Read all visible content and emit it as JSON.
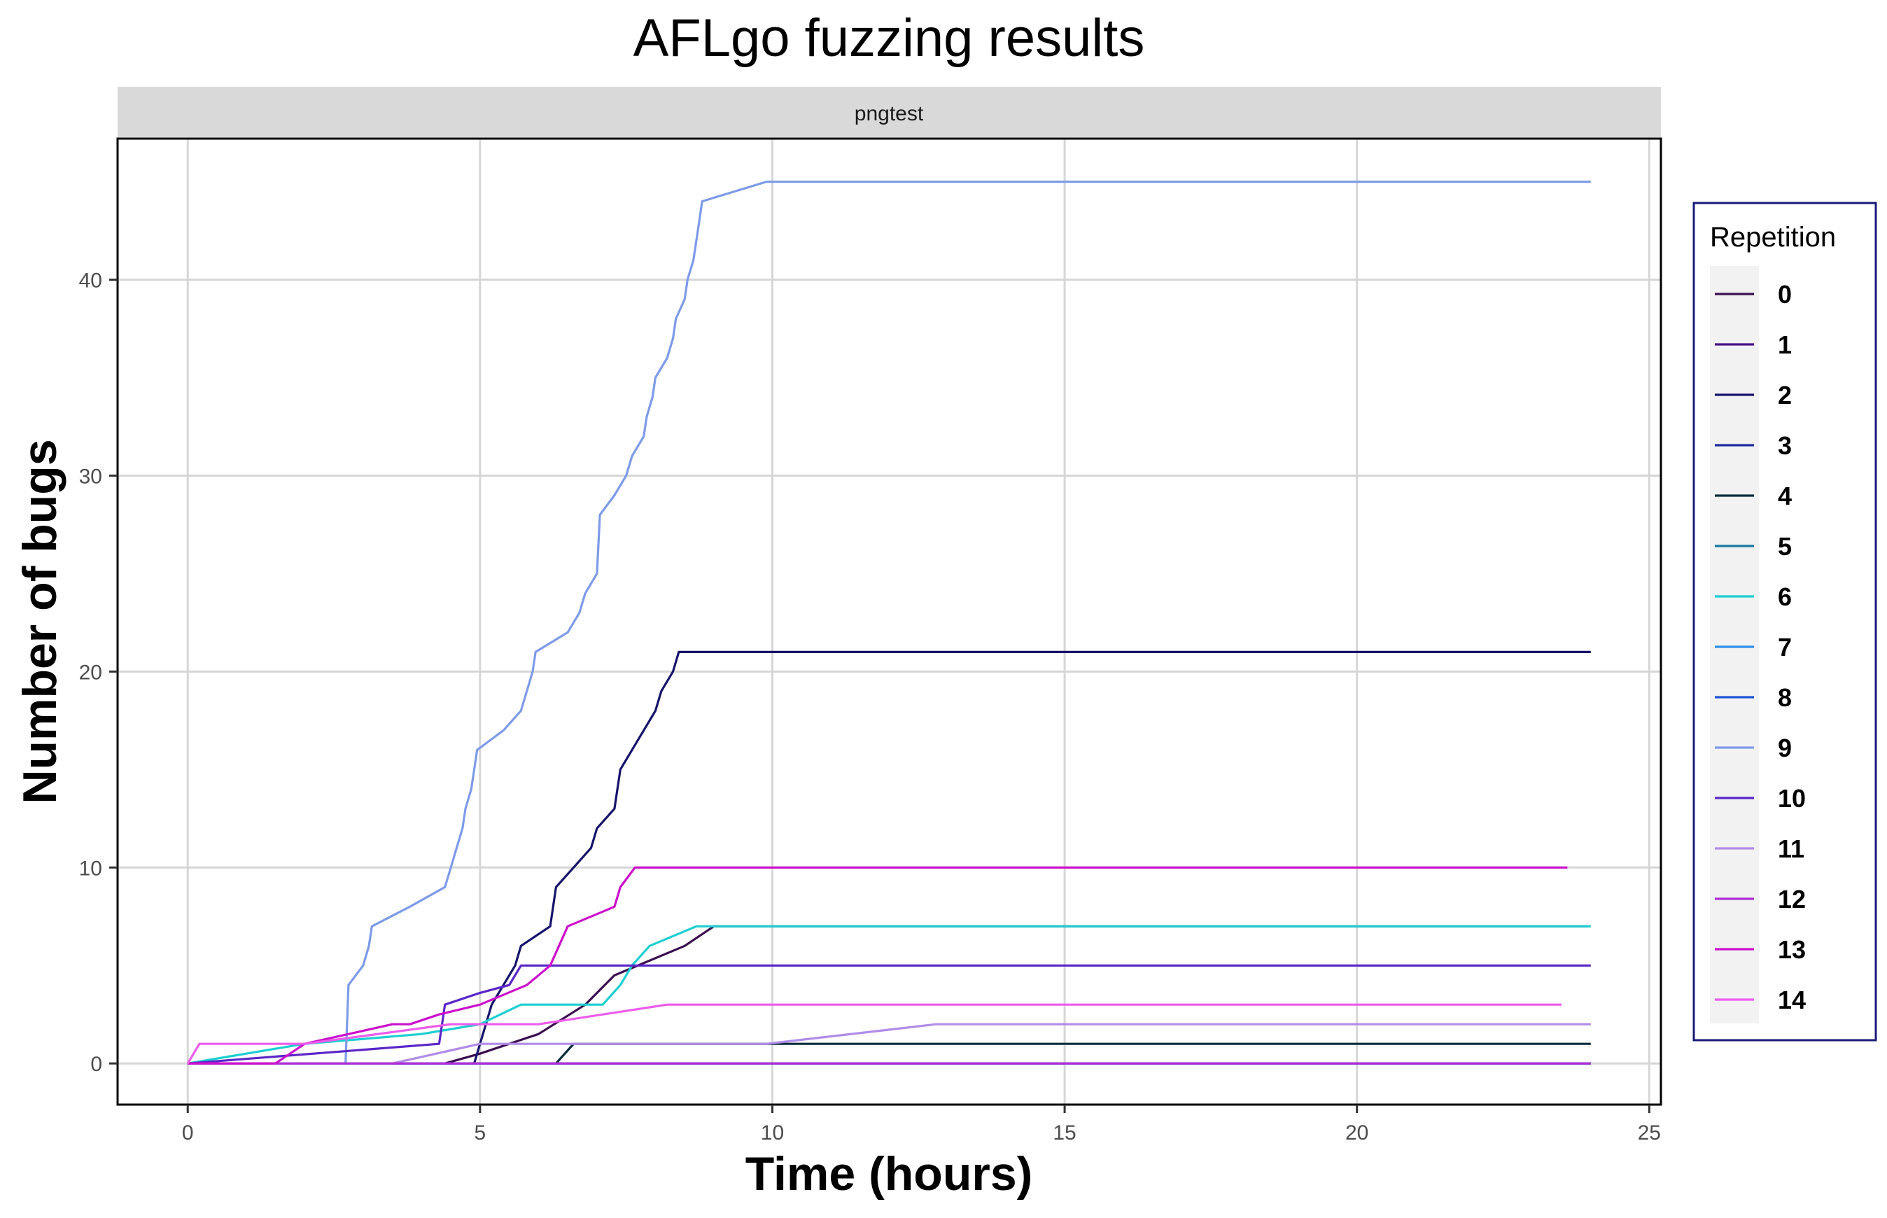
{
  "chart_data": {
    "type": "line",
    "title": "AFLgo fuzzing results",
    "facet": "pngtest",
    "xlabel": "Time (hours)",
    "ylabel": "Number of bugs",
    "xlim": [
      -1.2,
      25.2
    ],
    "ylim": [
      -2.1,
      47.2
    ],
    "xticks": [
      0,
      5,
      10,
      15,
      20,
      25
    ],
    "yticks": [
      0,
      10,
      20,
      30,
      40
    ],
    "grid": true,
    "legend": {
      "title": "Repetition",
      "position": "right"
    },
    "series": [
      {
        "name": "0",
        "color": "#3b0f4f",
        "points": [
          [
            0,
            0
          ],
          [
            4.4,
            0
          ],
          [
            5,
            0.5
          ],
          [
            6,
            1.5
          ],
          [
            6.8,
            3
          ],
          [
            7.3,
            4.5
          ],
          [
            8.5,
            6
          ],
          [
            9,
            7
          ],
          [
            23.8,
            7
          ],
          [
            23.95,
            7
          ]
        ]
      },
      {
        "name": "1",
        "color": "#4a1486",
        "points": [
          [
            0,
            0
          ],
          [
            24,
            0
          ]
        ]
      },
      {
        "name": "2",
        "color": "#16146b",
        "points": [
          [
            0,
            0
          ],
          [
            4.9,
            0
          ],
          [
            5,
            1
          ],
          [
            5.1,
            2
          ],
          [
            5.2,
            3
          ],
          [
            5.4,
            4
          ],
          [
            5.6,
            5
          ],
          [
            5.7,
            6
          ],
          [
            6.2,
            7
          ],
          [
            6.3,
            9
          ],
          [
            6.6,
            10
          ],
          [
            6.9,
            11
          ],
          [
            7,
            12
          ],
          [
            7.3,
            13
          ],
          [
            7.35,
            14
          ],
          [
            7.4,
            15
          ],
          [
            7.8,
            17
          ],
          [
            8,
            18
          ],
          [
            8.1,
            19
          ],
          [
            8.2,
            19.5
          ],
          [
            8.3,
            20
          ],
          [
            8.4,
            21
          ],
          [
            24,
            21
          ]
        ]
      },
      {
        "name": "3",
        "color": "#1f2a9e",
        "points": [
          [
            0,
            0
          ],
          [
            24,
            0
          ]
        ]
      },
      {
        "name": "4",
        "color": "#0a2d3c",
        "points": [
          [
            0,
            0
          ],
          [
            6.3,
            0
          ],
          [
            6.6,
            1
          ],
          [
            24,
            1
          ]
        ]
      },
      {
        "name": "5",
        "color": "#1478a0",
        "points": [
          [
            0,
            0
          ],
          [
            24,
            0
          ]
        ]
      },
      {
        "name": "6",
        "color": "#1ccfd1",
        "points": [
          [
            0,
            0
          ],
          [
            2,
            1
          ],
          [
            4,
            1.5
          ],
          [
            5,
            2
          ],
          [
            5.7,
            3
          ],
          [
            7.1,
            3
          ],
          [
            7.4,
            4
          ],
          [
            7.6,
            5
          ],
          [
            7.9,
            6
          ],
          [
            8.7,
            7
          ],
          [
            24,
            7
          ]
        ]
      },
      {
        "name": "7",
        "color": "#2f8fe8",
        "points": [
          [
            0,
            0
          ],
          [
            24,
            0
          ]
        ]
      },
      {
        "name": "8",
        "color": "#1e54d6",
        "points": [
          [
            0,
            0
          ],
          [
            24,
            0
          ]
        ]
      },
      {
        "name": "9",
        "color": "#7e9be8",
        "points": [
          [
            0,
            0
          ],
          [
            2.7,
            0
          ],
          [
            2.75,
            4
          ],
          [
            3,
            5
          ],
          [
            3.1,
            6
          ],
          [
            3.15,
            7
          ],
          [
            3.8,
            8
          ],
          [
            4.4,
            9
          ],
          [
            4.5,
            10
          ],
          [
            4.6,
            11
          ],
          [
            4.7,
            12
          ],
          [
            4.75,
            13
          ],
          [
            4.85,
            14
          ],
          [
            4.9,
            15
          ],
          [
            4.95,
            16
          ],
          [
            5.4,
            17
          ],
          [
            5.7,
            18
          ],
          [
            5.9,
            20
          ],
          [
            5.95,
            21
          ],
          [
            6.5,
            22
          ],
          [
            6.7,
            23
          ],
          [
            6.8,
            24
          ],
          [
            7,
            25
          ],
          [
            7.05,
            28
          ],
          [
            7.3,
            29
          ],
          [
            7.5,
            30
          ],
          [
            7.6,
            31
          ],
          [
            7.8,
            32
          ],
          [
            7.85,
            33
          ],
          [
            7.95,
            34
          ],
          [
            8,
            35
          ],
          [
            8.2,
            36
          ],
          [
            8.3,
            37
          ],
          [
            8.35,
            38
          ],
          [
            8.5,
            39
          ],
          [
            8.55,
            40
          ],
          [
            8.65,
            41
          ],
          [
            8.7,
            42
          ],
          [
            8.75,
            43
          ],
          [
            8.8,
            44
          ],
          [
            9.9,
            45
          ],
          [
            24,
            45
          ]
        ]
      },
      {
        "name": "10",
        "color": "#5a26c8",
        "points": [
          [
            0,
            0
          ],
          [
            4.3,
            1
          ],
          [
            4.4,
            3
          ],
          [
            5,
            3.6
          ],
          [
            5.5,
            4
          ],
          [
            5.7,
            5
          ],
          [
            24,
            5
          ]
        ]
      },
      {
        "name": "11",
        "color": "#b18be8",
        "points": [
          [
            0,
            0
          ],
          [
            3.5,
            0
          ],
          [
            5,
            1
          ],
          [
            9.9,
            1
          ],
          [
            12.8,
            2
          ],
          [
            24,
            2
          ]
        ]
      },
      {
        "name": "12",
        "color": "#b22bd6",
        "points": [
          [
            0,
            0
          ],
          [
            24,
            0
          ]
        ]
      },
      {
        "name": "13",
        "color": "#cc0fcc",
        "points": [
          [
            0,
            0
          ],
          [
            1.5,
            0
          ],
          [
            2,
            1
          ],
          [
            3.5,
            2
          ],
          [
            3.8,
            2
          ],
          [
            4.3,
            2.5
          ],
          [
            5,
            3
          ],
          [
            5.8,
            4
          ],
          [
            6.2,
            5
          ],
          [
            6.5,
            7
          ],
          [
            7.3,
            8
          ],
          [
            7.4,
            9
          ],
          [
            7.65,
            10
          ],
          [
            23.6,
            10
          ]
        ]
      },
      {
        "name": "14",
        "color": "#ec5cec",
        "points": [
          [
            0,
            0
          ],
          [
            0.2,
            1
          ],
          [
            2,
            1
          ],
          [
            4.5,
            2
          ],
          [
            6,
            2
          ],
          [
            8.2,
            3
          ],
          [
            23.5,
            3
          ]
        ]
      }
    ]
  }
}
